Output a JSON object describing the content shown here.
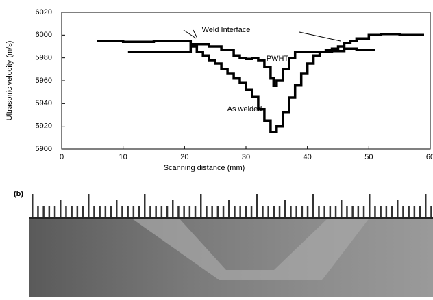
{
  "chart_data": {
    "type": "line",
    "xlabel": "Scanning distance (mm)",
    "ylabel": "Ultrasonic velocity (m/s)",
    "xlim": [
      0,
      60
    ],
    "xticks": [
      0,
      10,
      20,
      30,
      40,
      50,
      60
    ],
    "ylim": [
      5900,
      6020
    ],
    "yticks": [
      5900,
      5920,
      5940,
      5960,
      5980,
      6000,
      6020
    ],
    "annotation": "Weld Interface",
    "panel_label": "(b)",
    "series": [
      {
        "name": "As welded",
        "color": "#000000",
        "x": [
          5.8,
          10,
          15,
          20,
          21,
          22,
          23,
          24,
          25,
          26,
          27,
          28,
          29,
          30,
          31,
          32,
          33,
          34,
          35,
          36,
          37,
          38,
          39,
          40,
          41,
          42,
          43,
          44,
          45,
          46,
          47,
          48,
          50,
          52,
          55,
          59
        ],
        "values": [
          5995,
          5994,
          5995,
          5995,
          5992,
          5985,
          5982,
          5978,
          5975,
          5970,
          5966,
          5962,
          5958,
          5952,
          5946,
          5935,
          5925,
          5915,
          5920,
          5932,
          5945,
          5956,
          5966,
          5975,
          5982,
          5985,
          5987,
          5988,
          5990,
          5993,
          5995,
          5997,
          6000,
          6001,
          6000,
          6000
        ]
      },
      {
        "name": "PWHT",
        "color": "#000000",
        "x": [
          10.8,
          15,
          20,
          21,
          22,
          24,
          26,
          28,
          29,
          30,
          31,
          32,
          33,
          34,
          34.5,
          35,
          36,
          37,
          38,
          40,
          42,
          44,
          46,
          48,
          51
        ],
        "values": [
          5985,
          5985,
          5985,
          5990,
          5992,
          5990,
          5987,
          5982,
          5980,
          5979,
          5980,
          5978,
          5972,
          5962,
          5955,
          5960,
          5970,
          5980,
          5985,
          5985,
          5985,
          5986,
          5988,
          5987,
          5987
        ]
      }
    ]
  }
}
